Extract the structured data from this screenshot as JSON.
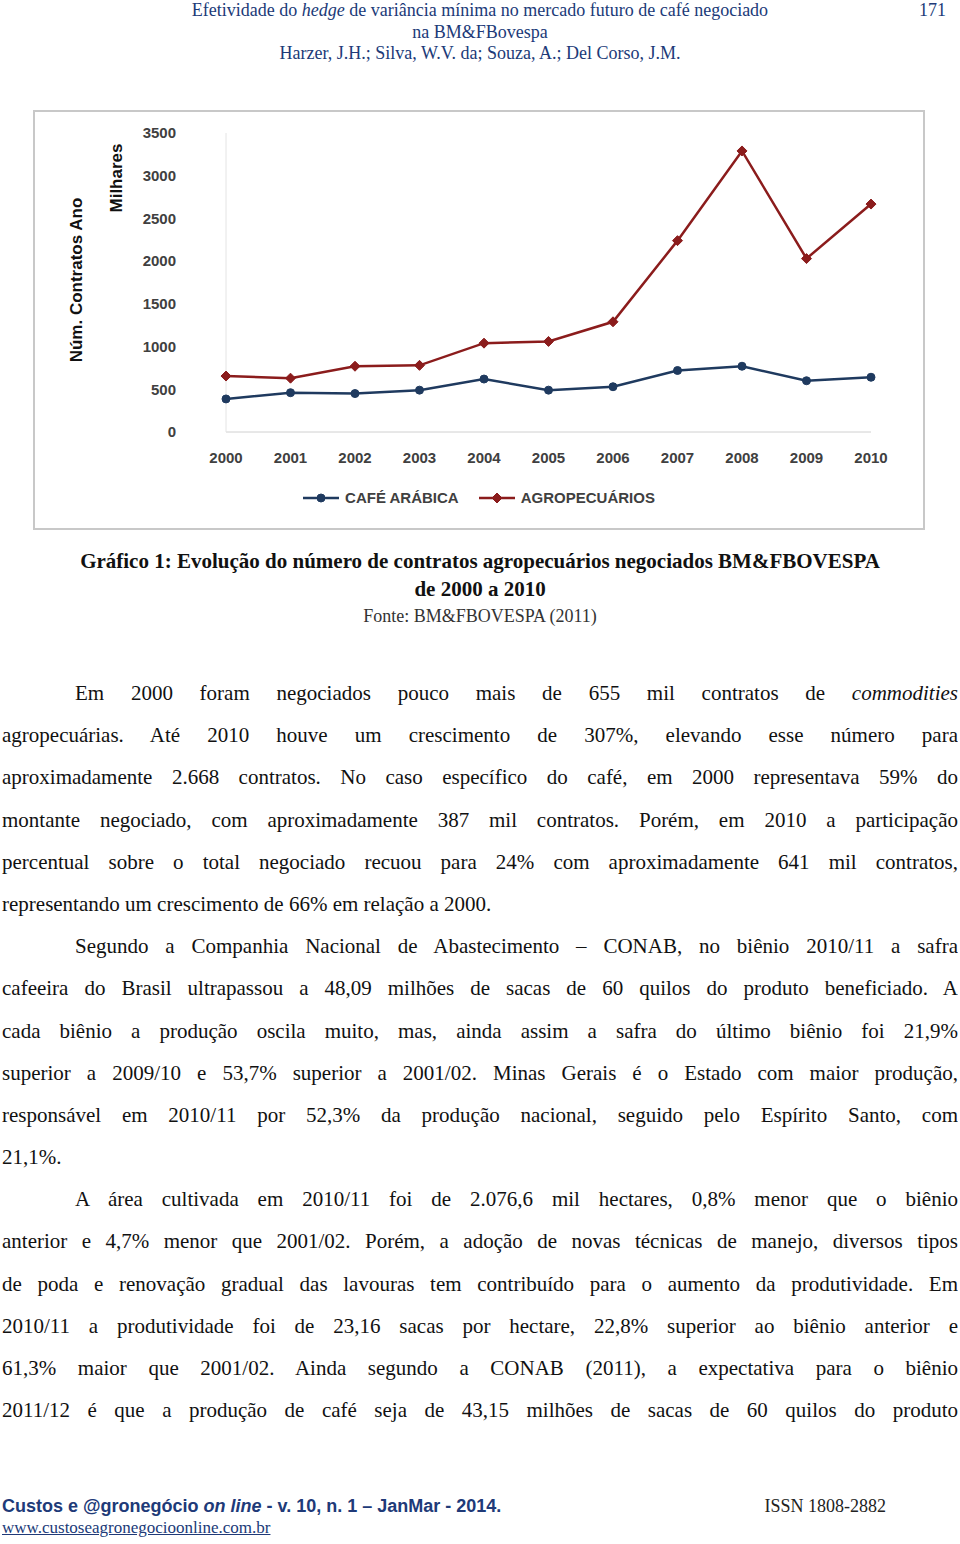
{
  "header": {
    "lines": [
      [
        "Efetividade do ",
        {
          "text": "hedge",
          "italic": true
        },
        " de variância mínima no mercado futuro de café negociado"
      ],
      [
        "na BM&FBovespa"
      ],
      [
        "Harzer, J.H.; Silva, W.V. da; Souza, A.; Del Corso, J.M."
      ]
    ],
    "page_number": "171"
  },
  "chart_data": {
    "type": "line",
    "y_label": "Núm. Contratos Ano",
    "y_unit_label": "Milhares",
    "categories": [
      "2000",
      "2001",
      "2002",
      "2003",
      "2004",
      "2005",
      "2006",
      "2007",
      "2008",
      "2009",
      "2010"
    ],
    "ylim": [
      0,
      3500
    ],
    "yticks": [
      0,
      500,
      1000,
      1500,
      2000,
      2500,
      3000,
      3500
    ],
    "grid": false,
    "legend": "bottom",
    "series": [
      {
        "name": "CAFÉ ARÁBICA",
        "color": "#1f3a5f",
        "marker": "circle",
        "values": [
          387,
          460,
          450,
          490,
          620,
          490,
          530,
          720,
          770,
          600,
          641
        ]
      },
      {
        "name": "AGROPECUÁRIOS",
        "color": "#8b1c1c",
        "marker": "diamond",
        "values": [
          655,
          630,
          770,
          780,
          1040,
          1060,
          1290,
          2240,
          3290,
          2030,
          2668
        ]
      }
    ]
  },
  "caption": {
    "title_lines": [
      "Gráfico 1: Evolução do número de contratos agropecuários negociados BM&FBOVESPA",
      "de 2000 a 2010"
    ],
    "source": "Fonte: BM&FBOVESPA (2011)"
  },
  "paragraphs": [
    {
      "lines": [
        [
          "Em 2000 foram negociados pouco mais de 655 mil contratos de ",
          {
            "text": "commodities",
            "italic": true
          }
        ],
        [
          "agropecuárias. Até 2010 houve um crescimento de 307%, elevando esse número para"
        ],
        [
          "aproximadamente 2.668 contratos. No caso específico do café, em 2000 representava 59% do"
        ],
        [
          "montante negociado, com aproximadamente 387 mil contratos. Porém, em 2010 a participação"
        ],
        [
          "percentual sobre o total negociado recuou para 24% com aproximadamente 641 mil contratos,"
        ],
        [
          "representando um crescimento de 66% em relação a 2000."
        ]
      ]
    },
    {
      "lines": [
        [
          "Segundo a Companhia Nacional de Abastecimento – CONAB, no biênio 2010/11 a safra"
        ],
        [
          "cafeeira do Brasil ultrapassou a 48,09 milhões de sacas de 60 quilos do produto beneficiado. A"
        ],
        [
          "cada biênio a produção oscila muito, mas, ainda assim a safra do último biênio foi 21,9%"
        ],
        [
          "superior a 2009/10 e 53,7% superior a 2001/02. Minas Gerais é o Estado com maior produção,"
        ],
        [
          "responsável em 2010/11 por 52,3% da produção nacional, seguido pelo Espírito Santo, com"
        ],
        [
          "21,1%."
        ]
      ]
    },
    {
      "continued": true,
      "lines": [
        [
          "A área cultivada em 2010/11 foi de 2.076,6 mil hectares, 0,8% menor que o biênio"
        ],
        [
          "anterior e 4,7% menor que 2001/02. Porém, a adoção de novas técnicas de manejo, diversos tipos"
        ],
        [
          "de poda e renovação gradual das lavouras tem contribuído para o aumento da produtividade. Em"
        ],
        [
          "2010/11 a produtividade foi de 23,16 sacas por hectare, 22,8% superior ao biênio anterior e"
        ],
        [
          "61,3% maior que 2001/02. Ainda segundo a CONAB (2011), a expectativa para o biênio"
        ],
        [
          "2011/12 é que a produção de café seja de 43,15 milhões de sacas de 60 quilos do produto"
        ]
      ]
    }
  ],
  "footer": {
    "journal": [
      "Custos e @gronegócio ",
      {
        "text": "on line",
        "italic": true
      },
      " - v. 10, n. 1 – JanMar - 2014."
    ],
    "issn": "ISSN 1808-2882",
    "url": "www.custoseagronegocioonline.com.br"
  }
}
